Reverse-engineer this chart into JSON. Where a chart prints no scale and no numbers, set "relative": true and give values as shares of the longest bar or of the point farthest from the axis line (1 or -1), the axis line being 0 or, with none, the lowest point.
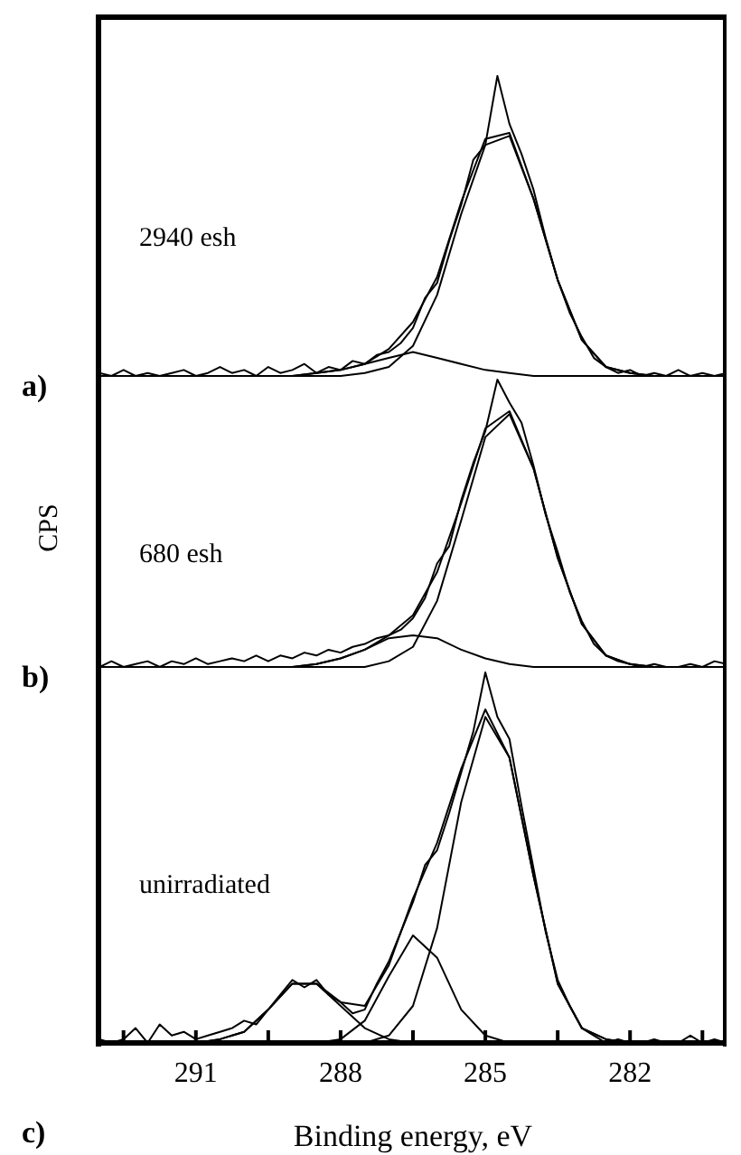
{
  "chart_data": [
    {
      "type": "line",
      "relative": true,
      "annotations": [
        "2940 esh",
        "a)"
      ],
      "xlim": [
        293,
        280
      ],
      "tick_labels": false,
      "grid": false,
      "legend": false,
      "marker": "none",
      "line_style": "solid",
      "x": [
        293,
        292.5,
        292,
        291.5,
        291,
        290.5,
        290,
        289.5,
        289,
        288.5,
        288,
        287.5,
        287,
        286.5,
        286,
        285.5,
        285,
        284.5,
        284,
        283.5,
        283,
        282.5,
        282,
        281.5,
        281,
        280.5,
        280
      ],
      "series": [
        {
          "color": "#000000",
          "x": [
            293,
            292.75,
            292.5,
            292.25,
            292,
            291.75,
            291.5,
            291.25,
            291,
            290.75,
            290.5,
            290.25,
            290,
            289.75,
            289.5,
            289.25,
            289,
            288.75,
            288.5,
            288.25,
            288,
            287.75,
            287.5,
            287.25,
            287,
            286.75,
            286.5,
            286.25,
            286,
            285.75,
            285.5,
            285.25,
            285,
            284.75,
            284.5,
            284.25,
            284,
            283.75,
            283.5,
            283.25,
            283,
            282.75,
            282.5,
            282.25,
            282,
            281.75,
            281.5,
            281.25,
            281,
            280.75,
            280.5,
            280.25,
            280
          ],
          "values": [
            0.01,
            0.0,
            0.02,
            0.0,
            0.01,
            0.0,
            0.01,
            0.02,
            0.0,
            0.01,
            0.03,
            0.01,
            0.02,
            0.0,
            0.03,
            0.01,
            0.02,
            0.04,
            0.01,
            0.03,
            0.02,
            0.05,
            0.04,
            0.07,
            0.08,
            0.11,
            0.16,
            0.26,
            0.31,
            0.45,
            0.57,
            0.72,
            0.77,
            1.0,
            0.84,
            0.74,
            0.62,
            0.46,
            0.32,
            0.21,
            0.13,
            0.06,
            0.03,
            0.01,
            0.02,
            0.0,
            0.01,
            0.0,
            0.02,
            0.0,
            0.01,
            0.0,
            0.01
          ]
        },
        {
          "color": "#000000",
          "values": [
            0,
            0,
            0,
            0,
            0,
            0,
            0,
            0,
            0,
            0.01,
            0.02,
            0.04,
            0.09,
            0.18,
            0.33,
            0.58,
            0.79,
            0.81,
            0.59,
            0.32,
            0.12,
            0.03,
            0.01,
            0,
            0,
            0,
            0
          ]
        },
        {
          "color": "#000000",
          "values": [
            0,
            0,
            0,
            0,
            0,
            0,
            0,
            0,
            0,
            0,
            0,
            0.01,
            0.03,
            0.1,
            0.27,
            0.54,
            0.77,
            0.8,
            0.59,
            0.32,
            0.12,
            0.03,
            0.01,
            0,
            0,
            0,
            0
          ]
        },
        {
          "color": "#000000",
          "values": [
            0,
            0,
            0,
            0,
            0,
            0,
            0,
            0,
            0,
            0.01,
            0.02,
            0.04,
            0.06,
            0.08,
            0.06,
            0.04,
            0.02,
            0.01,
            0,
            0,
            0,
            0,
            0,
            0,
            0,
            0,
            0
          ]
        }
      ]
    },
    {
      "type": "line",
      "relative": true,
      "ylabel": "CPS",
      "annotations": [
        "680 esh",
        "b)"
      ],
      "xlim": [
        293,
        280
      ],
      "tick_labels": false,
      "grid": false,
      "legend": false,
      "marker": "none",
      "line_style": "solid",
      "x": [
        293,
        292.5,
        292,
        291.5,
        291,
        290.5,
        290,
        289.5,
        289,
        288.5,
        288,
        287.5,
        287,
        286.5,
        286,
        285.5,
        285,
        284.5,
        284,
        283.5,
        283,
        282.5,
        282,
        281.5,
        281,
        280.5,
        280
      ],
      "series": [
        {
          "color": "#000000",
          "x": [
            293,
            292.75,
            292.5,
            292.25,
            292,
            291.75,
            291.5,
            291.25,
            291,
            290.75,
            290.5,
            290.25,
            290,
            289.75,
            289.5,
            289.25,
            289,
            288.75,
            288.5,
            288.25,
            288,
            287.75,
            287.5,
            287.25,
            287,
            286.75,
            286.5,
            286.25,
            286,
            285.75,
            285.5,
            285.25,
            285,
            284.75,
            284.5,
            284.25,
            284,
            283.75,
            283.5,
            283.25,
            283,
            282.75,
            282.5,
            282.25,
            282,
            281.75,
            281.5,
            281.25,
            281,
            280.75,
            280.5,
            280.25,
            280
          ],
          "values": [
            0.0,
            0.02,
            0.0,
            0.01,
            0.02,
            0.0,
            0.02,
            0.01,
            0.03,
            0.01,
            0.02,
            0.03,
            0.02,
            0.04,
            0.02,
            0.04,
            0.03,
            0.05,
            0.04,
            0.06,
            0.05,
            0.07,
            0.08,
            0.1,
            0.11,
            0.13,
            0.17,
            0.24,
            0.36,
            0.42,
            0.58,
            0.71,
            0.82,
            1.0,
            0.92,
            0.85,
            0.7,
            0.53,
            0.4,
            0.26,
            0.16,
            0.08,
            0.04,
            0.02,
            0.01,
            0.0,
            0.01,
            0.0,
            0.0,
            0.01,
            0.0,
            0.02,
            0.01
          ]
        },
        {
          "color": "#000000",
          "values": [
            0,
            0,
            0,
            0,
            0,
            0,
            0,
            0,
            0,
            0.01,
            0.03,
            0.06,
            0.11,
            0.18,
            0.33,
            0.57,
            0.83,
            0.89,
            0.69,
            0.38,
            0.15,
            0.04,
            0.01,
            0,
            0,
            0,
            0
          ]
        },
        {
          "color": "#000000",
          "values": [
            0,
            0,
            0,
            0,
            0,
            0,
            0,
            0,
            0,
            0,
            0,
            0,
            0.02,
            0.07,
            0.23,
            0.51,
            0.8,
            0.88,
            0.69,
            0.38,
            0.15,
            0.04,
            0.01,
            0,
            0,
            0,
            0
          ]
        },
        {
          "color": "#000000",
          "values": [
            0,
            0,
            0,
            0,
            0,
            0,
            0,
            0,
            0,
            0.01,
            0.03,
            0.06,
            0.1,
            0.11,
            0.1,
            0.06,
            0.03,
            0.01,
            0,
            0,
            0,
            0,
            0,
            0,
            0,
            0,
            0
          ]
        }
      ]
    },
    {
      "type": "line",
      "relative": true,
      "xlabel": "Binding energy, eV",
      "annotations": [
        "unirradiated",
        "c)"
      ],
      "xlim": [
        293,
        280
      ],
      "xticks": [
        {
          "value": 292.5,
          "label": null
        },
        291,
        {
          "value": 289.5,
          "label": null
        },
        288,
        {
          "value": 286.5,
          "label": null
        },
        285,
        {
          "value": 283.5,
          "label": null
        },
        282,
        {
          "value": 280.5,
          "label": null
        }
      ],
      "tick_labels": "x",
      "grid": false,
      "legend": false,
      "marker": "none",
      "line_style": "solid",
      "x": [
        293,
        292.5,
        292,
        291.5,
        291,
        290.5,
        290,
        289.5,
        289,
        288.5,
        288,
        287.5,
        287,
        286.5,
        286,
        285.5,
        285,
        284.5,
        284,
        283.5,
        283,
        282.5,
        282,
        281.5,
        281,
        280.5,
        280
      ],
      "series": [
        {
          "color": "#000000",
          "x": [
            293,
            292.75,
            292.5,
            292.25,
            292,
            291.75,
            291.5,
            291.25,
            291,
            290.75,
            290.5,
            290.25,
            290,
            289.75,
            289.5,
            289.25,
            289,
            288.75,
            288.5,
            288.25,
            288,
            287.75,
            287.5,
            287.25,
            287,
            286.75,
            286.5,
            286.25,
            286,
            285.75,
            285.5,
            285.25,
            285,
            284.75,
            284.5,
            284.25,
            284,
            283.75,
            283.5,
            283.25,
            283,
            282.75,
            282.5,
            282.25,
            282,
            281.75,
            281.5,
            281.25,
            281,
            280.75,
            280.5,
            280.25,
            280
          ],
          "values": [
            0.01,
            0.0,
            0.01,
            0.04,
            0.0,
            0.05,
            0.02,
            0.03,
            0.01,
            0.02,
            0.03,
            0.04,
            0.06,
            0.05,
            0.09,
            0.13,
            0.17,
            0.15,
            0.17,
            0.13,
            0.11,
            0.08,
            0.09,
            0.16,
            0.22,
            0.3,
            0.38,
            0.48,
            0.52,
            0.62,
            0.73,
            0.84,
            1.0,
            0.88,
            0.82,
            0.64,
            0.47,
            0.3,
            0.17,
            0.1,
            0.04,
            0.02,
            0.0,
            0.01,
            0.0,
            0.0,
            0.01,
            0.0,
            0.0,
            0.02,
            0.0,
            0.01,
            0.0
          ]
        },
        {
          "color": "#000000",
          "values": [
            0,
            0,
            0,
            0,
            0,
            0.01,
            0.03,
            0.09,
            0.16,
            0.16,
            0.11,
            0.1,
            0.21,
            0.39,
            0.54,
            0.74,
            0.9,
            0.77,
            0.45,
            0.16,
            0.04,
            0.01,
            0,
            0,
            0,
            0,
            0
          ]
        },
        {
          "color": "#000000",
          "values": [
            0,
            0,
            0,
            0,
            0,
            0,
            0,
            0,
            0,
            0,
            0,
            0,
            0.02,
            0.1,
            0.31,
            0.65,
            0.88,
            0.77,
            0.45,
            0.16,
            0.04,
            0.01,
            0,
            0,
            0,
            0,
            0
          ]
        },
        {
          "color": "#000000",
          "values": [
            0,
            0,
            0,
            0,
            0,
            0,
            0,
            0,
            0,
            0,
            0.01,
            0.06,
            0.18,
            0.29,
            0.23,
            0.09,
            0.02,
            0,
            0,
            0,
            0,
            0,
            0,
            0,
            0,
            0,
            0
          ]
        },
        {
          "color": "#000000",
          "values": [
            0,
            0,
            0,
            0,
            0,
            0.01,
            0.03,
            0.09,
            0.16,
            0.16,
            0.1,
            0.04,
            0.01,
            0,
            0,
            0,
            0,
            0,
            0,
            0,
            0,
            0,
            0,
            0,
            0,
            0,
            0
          ]
        }
      ]
    }
  ]
}
